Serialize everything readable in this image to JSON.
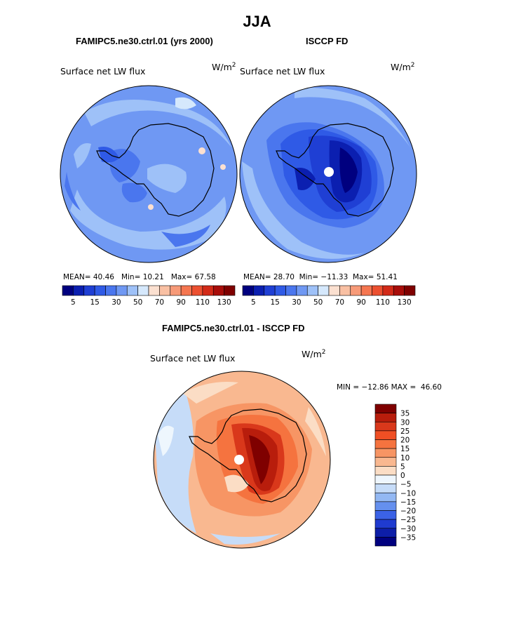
{
  "figure": {
    "season": "JJA",
    "panels": [
      {
        "id": "model",
        "title": "FAMIPC5.ne30.ctrl.01 (yrs 2000)",
        "field_label": "Surface net LW flux",
        "units_base": "W/m",
        "units_exp": "2",
        "stats": {
          "mean_label": "MEAN=",
          "mean": "40.46",
          "min_label": "Min=",
          "min": "10.21",
          "max_label": "Max=",
          "max": "67.58"
        },
        "colorbar_ticks": [
          "5",
          "15",
          "30",
          "50",
          "70",
          "90",
          "110",
          "130"
        ]
      },
      {
        "id": "obs",
        "title": "ISCCP FD",
        "field_label": "Surface net LW flux",
        "units_base": "W/m",
        "units_exp": "2",
        "stats": {
          "mean_label": "MEAN=",
          "mean": "28.70",
          "min_label": "Min=",
          "min": "−11.33",
          "max_label": "Max=",
          "max": "51.41"
        },
        "colorbar_ticks": [
          "5",
          "15",
          "30",
          "50",
          "70",
          "90",
          "110",
          "130"
        ]
      },
      {
        "id": "diff",
        "title": "FAMIPC5.ne30.ctrl.01 - ISCCP FD",
        "field_label": "Surface net LW flux",
        "units_base": "W/m",
        "units_exp": "2",
        "stats_text": "MIN = −12.86 MAX =  46.60",
        "colorbar_ticks": [
          "35",
          "30",
          "25",
          "20",
          "15",
          "10",
          "5",
          "0",
          "−5",
          "−10",
          "−15",
          "−20",
          "−25",
          "−30",
          "−35"
        ]
      }
    ]
  },
  "colors": {
    "seq_scale": [
      "#00007f",
      "#0b1fb0",
      "#1f3fd4",
      "#2f5ae6",
      "#4a76ee",
      "#6f98f3",
      "#9ec1f8",
      "#d5e8fc",
      "#fbe0d0",
      "#f9c0a3",
      "#f79a78",
      "#f57650",
      "#ec5030",
      "#d22a18",
      "#a80d0a",
      "#7f0000"
    ],
    "diff_scale": [
      "#7f0000",
      "#b81d0c",
      "#d9381b",
      "#f04f24",
      "#f5733f",
      "#f79564",
      "#f9b890",
      "#fbddc5",
      "#eef6fd",
      "#c6dcf8",
      "#93b8f3",
      "#6590ee",
      "#3b62e6",
      "#1f3bd0",
      "#0d1ea8",
      "#00007f"
    ],
    "land_outline": "#000000"
  },
  "chart_data": [
    {
      "type": "heatmap",
      "projection": "south-polar-stereographic",
      "title": "FAMIPC5.ne30.ctrl.01 (yrs 2000)",
      "variable": "Surface net LW flux",
      "units": "W/m2",
      "mean": 40.46,
      "min": 10.21,
      "max": 67.58,
      "contour_levels": [
        5,
        10,
        15,
        20,
        30,
        40,
        50,
        60,
        70,
        80,
        90,
        100,
        110,
        120,
        130
      ]
    },
    {
      "type": "heatmap",
      "projection": "south-polar-stereographic",
      "title": "ISCCP FD",
      "variable": "Surface net LW flux",
      "units": "W/m2",
      "mean": 28.7,
      "min": -11.33,
      "max": 51.41,
      "contour_levels": [
        5,
        10,
        15,
        20,
        30,
        40,
        50,
        60,
        70,
        80,
        90,
        100,
        110,
        120,
        130
      ]
    },
    {
      "type": "heatmap",
      "projection": "south-polar-stereographic",
      "title": "FAMIPC5.ne30.ctrl.01 - ISCCP FD",
      "variable": "Surface net LW flux",
      "units": "W/m2",
      "min": -12.86,
      "max": 46.6,
      "contour_levels": [
        -35,
        -30,
        -25,
        -20,
        -15,
        -10,
        -5,
        0,
        5,
        10,
        15,
        20,
        25,
        30,
        35
      ]
    }
  ]
}
